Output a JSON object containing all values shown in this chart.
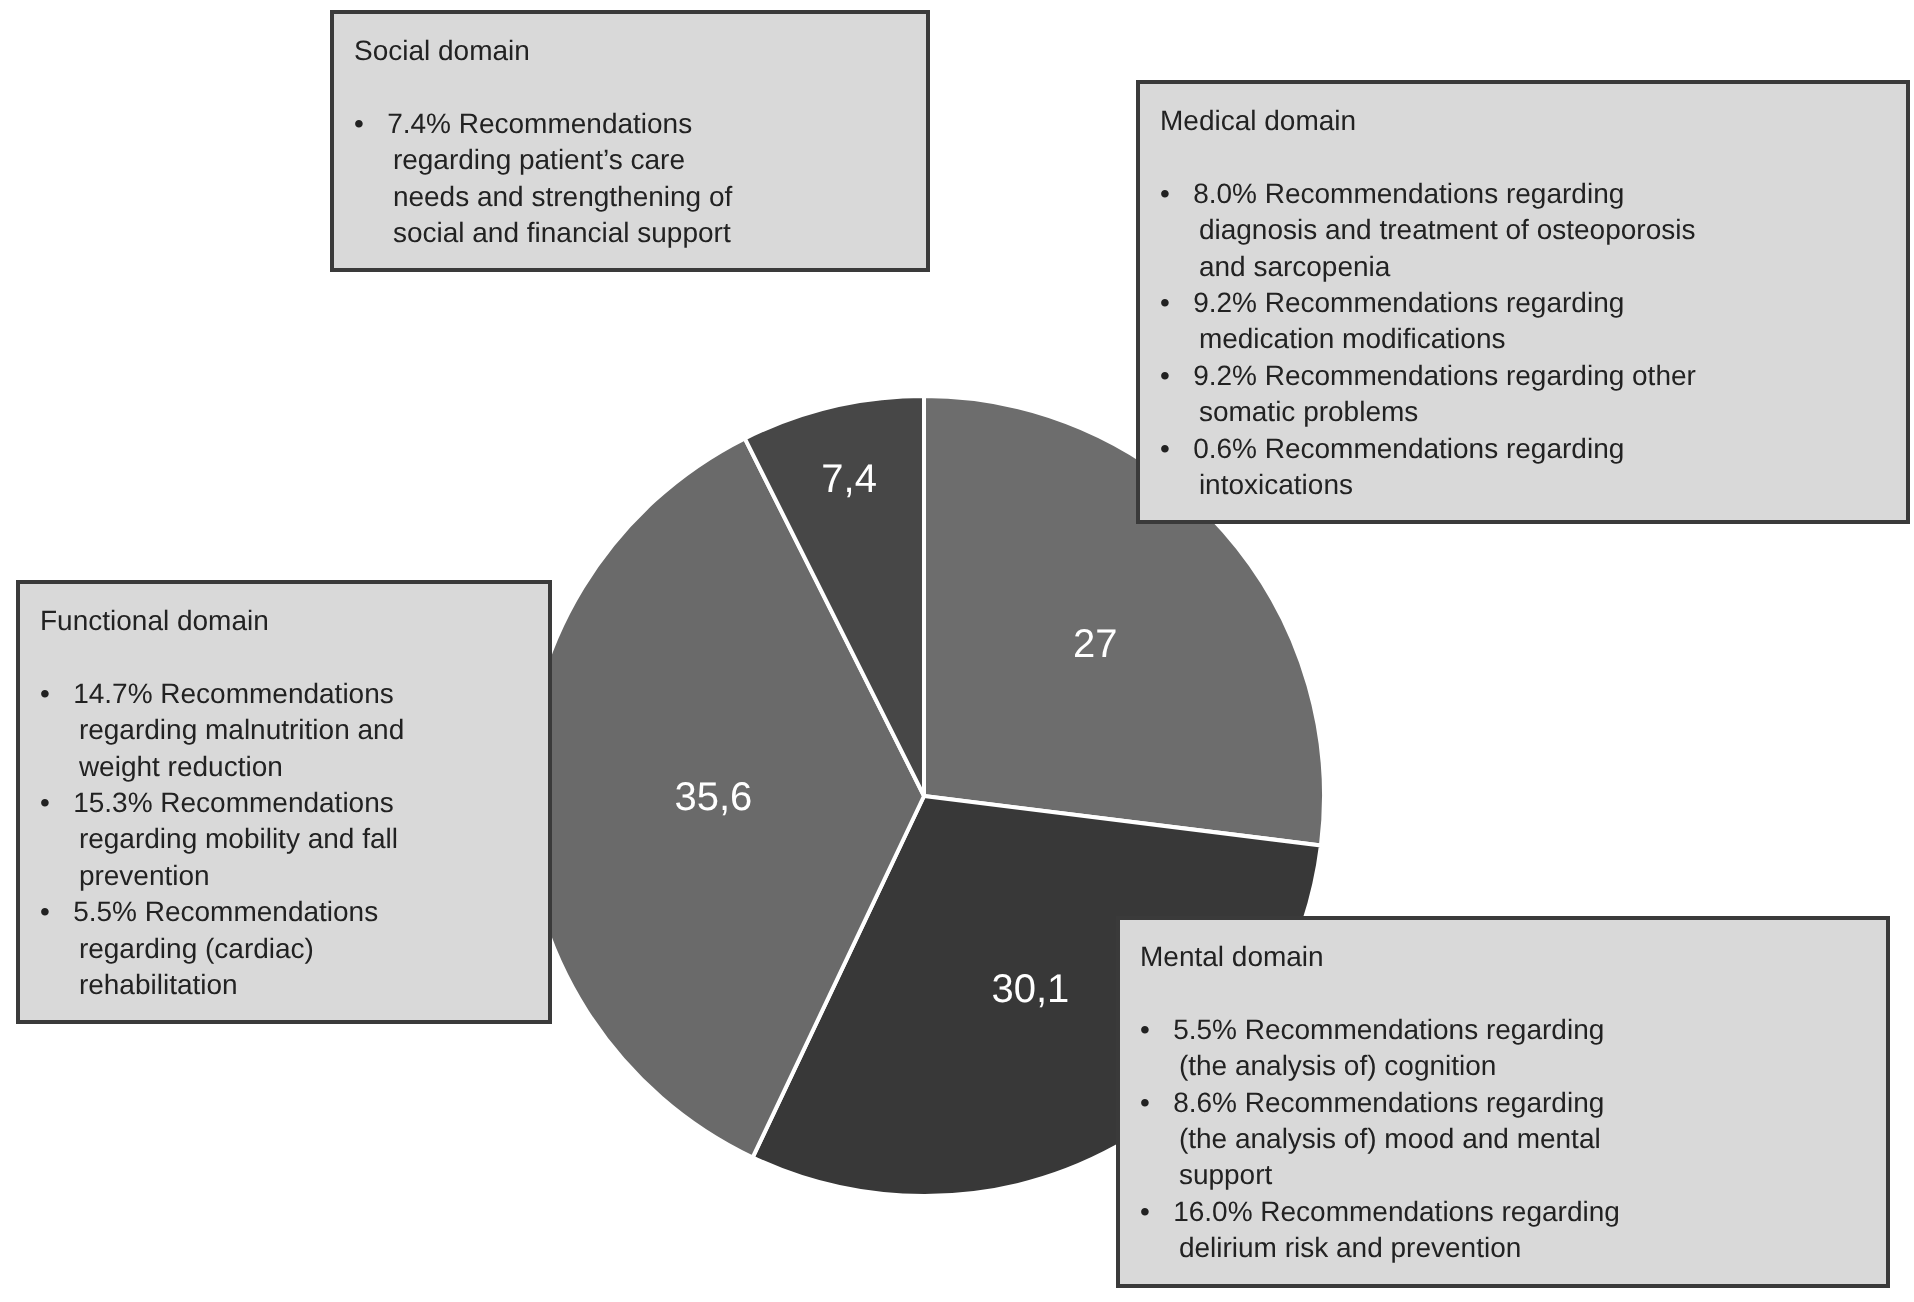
{
  "chart_data": {
    "type": "pie",
    "categories": [
      null,
      null,
      null,
      null
    ],
    "values": [
      27,
      30.1,
      35.6,
      7.4
    ],
    "value_labels": [
      "27",
      "30,1",
      "35,6",
      "7,4"
    ],
    "colors": [
      "#6d6d6d",
      "#383838",
      "#6a6a6a",
      "#474747"
    ],
    "legend": false,
    "annotations": [
      "Social domain\n\n•   7.4% Recommendations\n     regarding patient’s care\n     needs and strengthening of\n     social and financial support",
      "Medical domain\n\n•   8.0% Recommendations regarding\n     diagnosis and treatment of osteoporosis\n     and sarcopenia\n•   9.2% Recommendations regarding\n     medication modifications\n•   9.2% Recommendations regarding other\n     somatic problems\n•   0.6% Recommendations regarding\n     intoxications",
      "Functional domain\n\n•   14.7% Recommendations\n     regarding malnutrition and\n     weight reduction\n•   15.3% Recommendations\n     regarding mobility and fall\n     prevention\n•   5.5% Recommendations\n     regarding (cardiac)\n     rehabilitation",
      "Mental domain\n\n•   5.5% Recommendations regarding\n     (the analysis of) cognition\n•   8.6% Recommendations regarding\n     (the analysis of) mood and mental\n     support\n•   16.0% Recommendations regarding\n     delirium risk and prevention"
    ]
  }
}
